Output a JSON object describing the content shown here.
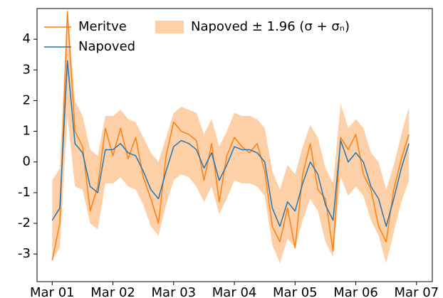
{
  "chart_data": {
    "type": "line",
    "x": [
      0,
      0.125,
      0.25,
      0.375,
      0.5,
      0.625,
      0.75,
      0.875,
      1,
      1.125,
      1.25,
      1.375,
      1.5,
      1.625,
      1.75,
      1.875,
      2,
      2.125,
      2.25,
      2.375,
      2.5,
      2.625,
      2.75,
      2.875,
      3,
      3.125,
      3.25,
      3.375,
      3.5,
      3.625,
      3.75,
      3.875,
      4,
      4.125,
      4.25,
      4.375,
      4.5,
      4.625,
      4.75,
      4.875,
      5,
      5.125,
      5.25,
      5.375,
      5.5,
      5.625,
      5.75,
      5.875
    ],
    "band": {
      "name": "Napoved ± 1.96 (σ + σₙ)",
      "color": "#fdd0a8",
      "lower": [
        -3.2,
        -2.8,
        1.5,
        -0.8,
        -0.9,
        -2.0,
        -2.2,
        -0.7,
        -0.7,
        -0.5,
        -0.8,
        -0.9,
        -1.4,
        -2.1,
        -2.4,
        -1.4,
        -0.6,
        -0.4,
        -0.5,
        -0.8,
        -1.3,
        -0.8,
        -1.7,
        -1.2,
        -0.6,
        -0.7,
        -0.7,
        -0.8,
        -1.1,
        -2.7,
        -3.3,
        -2.5,
        -2.8,
        -1.9,
        -1.2,
        -1.6,
        -2.6,
        -3.1,
        -0.5,
        -1.1,
        -0.8,
        -1.1,
        -1.9,
        -2.4,
        -3.3,
        -2.3,
        -1.3,
        -0.6
      ],
      "upper": [
        -0.6,
        -0.2,
        5.1,
        2.0,
        1.5,
        0.4,
        0.2,
        1.5,
        1.5,
        1.7,
        1.4,
        1.3,
        0.8,
        0.3,
        0.0,
        0.8,
        1.6,
        1.8,
        1.7,
        1.6,
        0.9,
        1.4,
        0.5,
        1.0,
        1.6,
        1.5,
        1.5,
        1.4,
        1.1,
        -0.3,
        -0.9,
        -0.1,
        -0.4,
        0.5,
        1.2,
        0.8,
        -0.2,
        -0.7,
        1.9,
        1.1,
        1.4,
        1.1,
        0.3,
        0.0,
        -0.9,
        -0.1,
        0.9,
        1.8
      ]
    },
    "series": [
      {
        "name": "Meritve",
        "color": "#ff7f0e",
        "values": [
          -3.2,
          -2.0,
          4.9,
          1.0,
          0.5,
          -1.6,
          -0.8,
          1.1,
          0.2,
          1.1,
          0.1,
          0.8,
          -0.5,
          -1.2,
          -2.0,
          0.2,
          1.3,
          1.0,
          0.9,
          0.7,
          -0.6,
          0.6,
          -1.3,
          0.2,
          0.8,
          0.5,
          0.3,
          0.6,
          -0.3,
          -2.1,
          -2.6,
          -1.5,
          -2.8,
          -0.4,
          0.6,
          -0.9,
          -1.2,
          -2.9,
          0.8,
          0.4,
          0.9,
          -0.4,
          -0.9,
          -2.1,
          -2.6,
          -0.9,
          0.1,
          0.9
        ]
      },
      {
        "name": "Napoved",
        "color": "#1f77b4",
        "values": [
          -1.9,
          -1.5,
          3.3,
          0.6,
          0.3,
          -0.8,
          -1.0,
          0.4,
          0.4,
          0.6,
          0.3,
          0.2,
          -0.3,
          -0.9,
          -1.2,
          -0.3,
          0.5,
          0.7,
          0.6,
          0.4,
          -0.2,
          0.3,
          -0.6,
          -0.1,
          0.5,
          0.4,
          0.4,
          0.3,
          0.0,
          -1.5,
          -2.1,
          -1.3,
          -1.6,
          -0.7,
          0.0,
          -0.4,
          -1.4,
          -1.9,
          0.7,
          0.0,
          0.3,
          0.0,
          -0.8,
          -1.2,
          -2.1,
          -1.2,
          -0.2,
          0.6
        ]
      }
    ],
    "xlim": [
      -0.25,
      6.26
    ],
    "ylim": [
      -3.9,
      5.0
    ],
    "xticks": [
      {
        "value": 0,
        "label": "Mar 01"
      },
      {
        "value": 1,
        "label": "Mar 02"
      },
      {
        "value": 2,
        "label": "Mar 03"
      },
      {
        "value": 3,
        "label": "Mar 04"
      },
      {
        "value": 4,
        "label": "Mar 05"
      },
      {
        "value": 5,
        "label": "Mar 06"
      },
      {
        "value": 6,
        "label": "Mar 07"
      }
    ],
    "yticks": [
      -3,
      -2,
      -1,
      0,
      1,
      2,
      3,
      4
    ],
    "legend": "upper left"
  }
}
